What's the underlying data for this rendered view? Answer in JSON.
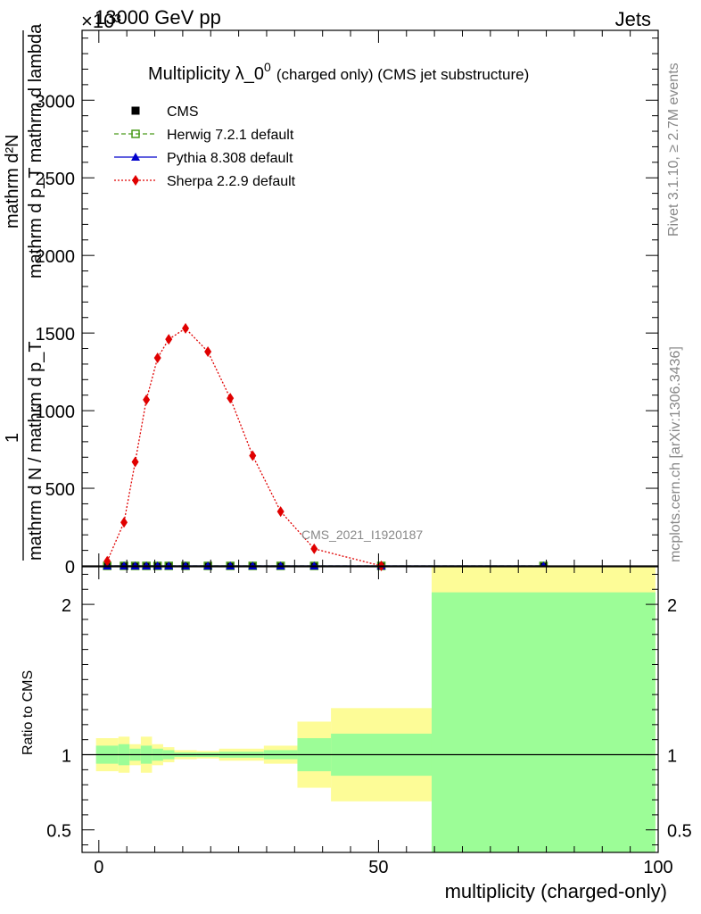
{
  "header": {
    "exponent_label": "×10³",
    "energy_label": "13000 GeV pp",
    "process_label": "Jets"
  },
  "side_labels": {
    "rivet": "Rivet 3.1.10, ≥ 2.7M events",
    "mcplots": "mcplots.cern.ch [arXiv:1306.3436]"
  },
  "chart_data": [
    {
      "type": "line",
      "title_main": "Multiplicity λ_0",
      "title_sup": "0",
      "title_rest": "(charged only) (CMS jet substructure)",
      "ylabel_top_line1": "mathrm d²N",
      "ylabel_top_line2": "mathrm d p_T mathrm d lambda",
      "ylabel_frac_num": "1",
      "ylabel_bottom": "mathrm d N / mathrm d p_T",
      "watermark": "CMS_2021_I1920187",
      "xlim": [
        -3,
        100
      ],
      "ylim": [
        0,
        3450
      ],
      "x_ticks": [
        0,
        50,
        100
      ],
      "y_ticks": [
        0,
        500,
        1000,
        1500,
        2000,
        2500,
        3000
      ],
      "y_tick_labels": [
        "0",
        "500",
        "1000",
        "1500",
        "2000",
        "2500",
        "3000"
      ],
      "legend": [
        {
          "name": "CMS",
          "color": "#000000",
          "marker": "square",
          "line": "none"
        },
        {
          "name": "Herwig 7.2.1 default",
          "color": "#4a9a1a",
          "marker": "open-square",
          "line": "dashed"
        },
        {
          "name": "Pythia 8.308 default",
          "color": "#0000cc",
          "marker": "triangle",
          "line": "solid"
        },
        {
          "name": "Sherpa 2.2.9 default",
          "color": "#e00000",
          "marker": "diamond",
          "line": "dotted"
        }
      ],
      "series": [
        {
          "name": "CMS",
          "x": [
            1.5,
            4.5,
            6.5,
            8.5,
            10.5,
            12.5,
            15.5,
            19.5,
            23.5,
            27.5,
            32.5,
            38.5,
            50.5,
            79.5
          ],
          "y": [
            0,
            0,
            0,
            0,
            0,
            0,
            0,
            0,
            0,
            0,
            0,
            0,
            0,
            0
          ]
        },
        {
          "name": "Herwig 7.2.1 default",
          "x": [
            1.5,
            4.5,
            6.5,
            8.5,
            10.5,
            12.5,
            15.5,
            19.5,
            23.5,
            27.5,
            32.5,
            38.5,
            50.5,
            79.5
          ],
          "y": [
            0,
            0,
            0,
            0,
            0,
            0,
            0,
            0,
            0,
            0,
            0,
            0,
            0,
            0
          ]
        },
        {
          "name": "Pythia 8.308 default",
          "x": [
            1.5,
            4.5,
            6.5,
            8.5,
            10.5,
            12.5,
            15.5,
            19.5,
            23.5,
            27.5,
            32.5,
            38.5,
            50.5,
            79.5
          ],
          "y": [
            0,
            0,
            0,
            0,
            0,
            0,
            0,
            0,
            0,
            0,
            0,
            0,
            0,
            0
          ]
        },
        {
          "name": "Sherpa 2.2.9 default",
          "x": [
            1.5,
            4.5,
            6.5,
            8.5,
            10.5,
            12.5,
            15.5,
            19.5,
            23.5,
            27.5,
            32.5,
            38.5,
            50.5
          ],
          "y": [
            30,
            280,
            670,
            1070,
            1340,
            1460,
            1530,
            1380,
            1080,
            710,
            350,
            110,
            0
          ]
        }
      ]
    },
    {
      "type": "area",
      "ylabel": "Ratio to CMS",
      "xlabel": "multiplicity (charged-only)",
      "xlim": [
        -3,
        100
      ],
      "ylim": [
        0.35,
        2.25
      ],
      "x_ticks": [
        0,
        50,
        100
      ],
      "y_ticks": [
        0.5,
        1,
        2
      ],
      "y_tick_labels": [
        "0.5",
        "1",
        "2"
      ],
      "reference_line": 1,
      "bands": [
        {
          "x0": -0.5,
          "x1": 3.5,
          "stat_lo": 0.94,
          "stat_hi": 1.06,
          "tot_lo": 0.89,
          "tot_hi": 1.11
        },
        {
          "x0": 3.5,
          "x1": 5.5,
          "stat_lo": 0.93,
          "stat_hi": 1.07,
          "tot_lo": 0.88,
          "tot_hi": 1.12
        },
        {
          "x0": 5.5,
          "x1": 7.5,
          "stat_lo": 0.96,
          "stat_hi": 1.04,
          "tot_lo": 0.93,
          "tot_hi": 1.07
        },
        {
          "x0": 7.5,
          "x1": 9.5,
          "stat_lo": 0.94,
          "stat_hi": 1.06,
          "tot_lo": 0.88,
          "tot_hi": 1.12
        },
        {
          "x0": 9.5,
          "x1": 11.5,
          "stat_lo": 0.96,
          "stat_hi": 1.04,
          "tot_lo": 0.93,
          "tot_hi": 1.07
        },
        {
          "x0": 11.5,
          "x1": 13.5,
          "stat_lo": 0.97,
          "stat_hi": 1.03,
          "tot_lo": 0.95,
          "tot_hi": 1.05
        },
        {
          "x0": 13.5,
          "x1": 17.5,
          "stat_lo": 0.985,
          "stat_hi": 1.015,
          "tot_lo": 0.97,
          "tot_hi": 1.03
        },
        {
          "x0": 17.5,
          "x1": 21.5,
          "stat_lo": 0.985,
          "stat_hi": 1.015,
          "tot_lo": 0.975,
          "tot_hi": 1.025
        },
        {
          "x0": 21.5,
          "x1": 29.5,
          "stat_lo": 0.98,
          "stat_hi": 1.02,
          "tot_lo": 0.96,
          "tot_hi": 1.04
        },
        {
          "x0": 29.5,
          "x1": 35.5,
          "stat_lo": 0.97,
          "stat_hi": 1.03,
          "tot_lo": 0.94,
          "tot_hi": 1.06
        },
        {
          "x0": 35.5,
          "x1": 41.5,
          "stat_lo": 0.89,
          "stat_hi": 1.11,
          "tot_lo": 0.78,
          "tot_hi": 1.22
        },
        {
          "x0": 41.5,
          "x1": 59.5,
          "stat_lo": 0.86,
          "stat_hi": 1.14,
          "tot_lo": 0.69,
          "tot_hi": 1.31
        },
        {
          "x0": 59.5,
          "x1": 99.5,
          "stat_lo": 0.0,
          "stat_hi": 2.08,
          "tot_lo": 0.0,
          "tot_hi": 2.5
        }
      ],
      "colors": {
        "stat": "#9cfd97",
        "total": "#fdfc97"
      }
    }
  ]
}
